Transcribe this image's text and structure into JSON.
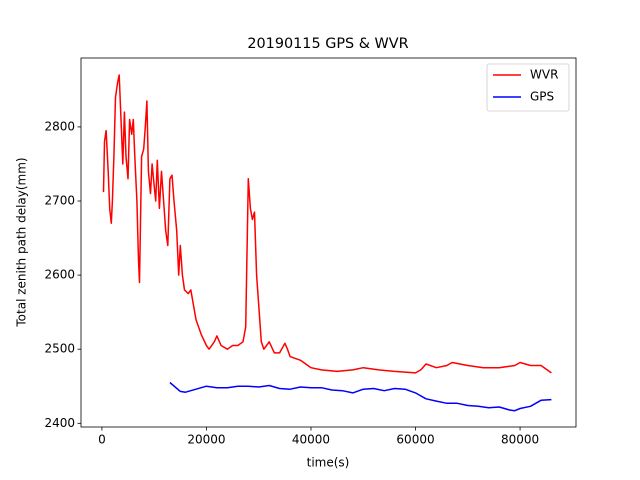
{
  "chart_data": {
    "type": "line",
    "title": "20190115 GPS & WVR",
    "xlabel": "time(s)",
    "ylabel": "Total zenith path delay(mm)",
    "xlim": [
      -4000,
      90700
    ],
    "ylim": [
      2395,
      2893
    ],
    "xticks": [
      0,
      20000,
      40000,
      60000,
      80000
    ],
    "yticks": [
      2400,
      2500,
      2600,
      2700,
      2800
    ],
    "legend": "upper right",
    "series": [
      {
        "name": "WVR",
        "color": "#ff0000",
        "x": [
          300,
          500,
          800,
          1200,
          1500,
          1800,
          2000,
          2300,
          2600,
          3000,
          3300,
          3600,
          4000,
          4300,
          4600,
          5000,
          5300,
          5700,
          6000,
          6300,
          6700,
          7000,
          7200,
          7600,
          8000,
          8300,
          8600,
          8900,
          9300,
          9600,
          10000,
          10300,
          10600,
          11000,
          11400,
          11800,
          12200,
          12600,
          13000,
          13400,
          13800,
          14300,
          14700,
          15000,
          15400,
          15800,
          16500,
          17000,
          17500,
          18000,
          19000,
          20000,
          20500,
          21500,
          22000,
          22800,
          24000,
          25000,
          26000,
          27000,
          27500,
          28000,
          28400,
          28800,
          29200,
          29600,
          30000,
          30500,
          31000,
          32000,
          33000,
          34000,
          35000,
          35500,
          36000,
          38000,
          40000,
          42000,
          45000,
          48000,
          50000,
          53000,
          56000,
          60000,
          61000,
          62000,
          64000,
          66000,
          67000,
          70000,
          73000,
          76000,
          79000,
          80000,
          82000,
          84000,
          86000
        ],
        "values": [
          2712,
          2780,
          2795,
          2740,
          2690,
          2670,
          2700,
          2760,
          2840,
          2860,
          2870,
          2820,
          2750,
          2820,
          2760,
          2730,
          2810,
          2790,
          2810,
          2760,
          2700,
          2620,
          2590,
          2760,
          2770,
          2800,
          2835,
          2740,
          2710,
          2750,
          2720,
          2700,
          2755,
          2690,
          2740,
          2700,
          2660,
          2640,
          2730,
          2735,
          2700,
          2660,
          2600,
          2640,
          2600,
          2580,
          2575,
          2580,
          2560,
          2540,
          2520,
          2505,
          2500,
          2510,
          2518,
          2505,
          2500,
          2505,
          2505,
          2510,
          2530,
          2730,
          2690,
          2675,
          2685,
          2600,
          2560,
          2510,
          2500,
          2510,
          2495,
          2495,
          2508,
          2500,
          2490,
          2485,
          2475,
          2472,
          2470,
          2472,
          2475,
          2472,
          2470,
          2468,
          2472,
          2480,
          2475,
          2478,
          2482,
          2478,
          2475,
          2475,
          2478,
          2482,
          2478,
          2478,
          2468
        ]
      },
      {
        "name": "GPS",
        "color": "#0000ff",
        "x": [
          13000,
          15000,
          16000,
          18000,
          20000,
          22000,
          24000,
          26000,
          28000,
          30000,
          32000,
          34000,
          36000,
          38000,
          40000,
          42000,
          44000,
          46000,
          48000,
          50000,
          52000,
          54000,
          56000,
          58000,
          60000,
          62000,
          64000,
          66000,
          68000,
          70000,
          72000,
          74000,
          76000,
          78000,
          79000,
          80000,
          82000,
          84000,
          86000
        ],
        "values": [
          2455,
          2443,
          2442,
          2446,
          2450,
          2448,
          2448,
          2450,
          2450,
          2449,
          2451,
          2447,
          2446,
          2449,
          2448,
          2448,
          2445,
          2444,
          2441,
          2446,
          2447,
          2444,
          2447,
          2446,
          2441,
          2433,
          2430,
          2427,
          2427,
          2424,
          2423,
          2421,
          2422,
          2418,
          2417,
          2420,
          2423,
          2431,
          2432
        ]
      }
    ]
  }
}
